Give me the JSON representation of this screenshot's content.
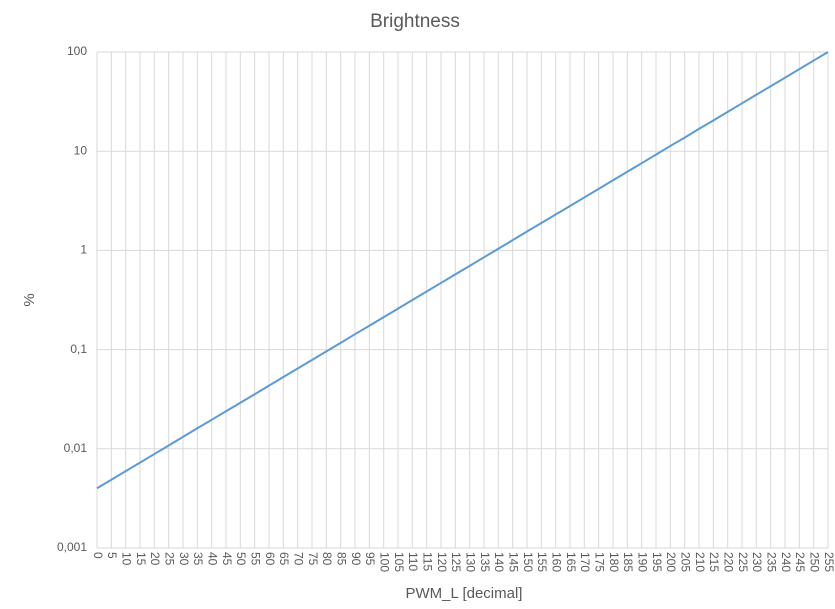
{
  "chart_data": {
    "type": "line",
    "title": "Brightness",
    "x_label": "PWM_L [decimal]",
    "y_label": "%",
    "log_y": true,
    "grid": true,
    "color": "#5b9bd5",
    "xlim": [
      0,
      255
    ],
    "xticks": [
      0,
      5,
      10,
      15,
      20,
      25,
      30,
      35,
      40,
      45,
      50,
      55,
      60,
      65,
      70,
      75,
      80,
      85,
      90,
      95,
      100,
      105,
      110,
      115,
      120,
      125,
      130,
      135,
      140,
      145,
      150,
      155,
      160,
      165,
      170,
      175,
      180,
      185,
      190,
      195,
      200,
      205,
      210,
      215,
      220,
      225,
      230,
      235,
      240,
      245,
      250,
      255
    ],
    "ylim": [
      0.001,
      100
    ],
    "yticks": [
      {
        "value": 0.001,
        "label": "0,001"
      },
      {
        "value": 0.01,
        "label": "0,01"
      },
      {
        "value": 0.1,
        "label": "0,1"
      },
      1,
      10,
      100
    ],
    "x": [
      0,
      5,
      10,
      15,
      20,
      25,
      30,
      35,
      40,
      45,
      50,
      55,
      60,
      65,
      70,
      75,
      80,
      85,
      90,
      95,
      100,
      105,
      110,
      115,
      120,
      125,
      130,
      135,
      140,
      145,
      150,
      155,
      160,
      165,
      170,
      175,
      180,
      185,
      190,
      195,
      200,
      205,
      210,
      215,
      220,
      225,
      230,
      235,
      240,
      245,
      250,
      255
    ],
    "values": [
      0.004,
      0.00488,
      0.00595,
      0.00726,
      0.00885,
      0.0108,
      0.0132,
      0.0161,
      0.0196,
      0.0239,
      0.0291,
      0.0355,
      0.0433,
      0.0529,
      0.0645,
      0.0786,
      0.0959,
      0.117,
      0.143,
      0.174,
      0.212,
      0.259,
      0.316,
      0.385,
      0.47,
      0.573,
      0.698,
      0.852,
      1.04,
      1.27,
      1.55,
      1.89,
      2.3,
      2.8,
      3.42,
      4.17,
      5.09,
      6.21,
      7.57,
      9.23,
      11.3,
      13.7,
      16.8,
      20.4,
      24.9,
      30.4,
      37.1,
      45.2,
      55.1,
      67.2,
      82,
      100
    ]
  }
}
